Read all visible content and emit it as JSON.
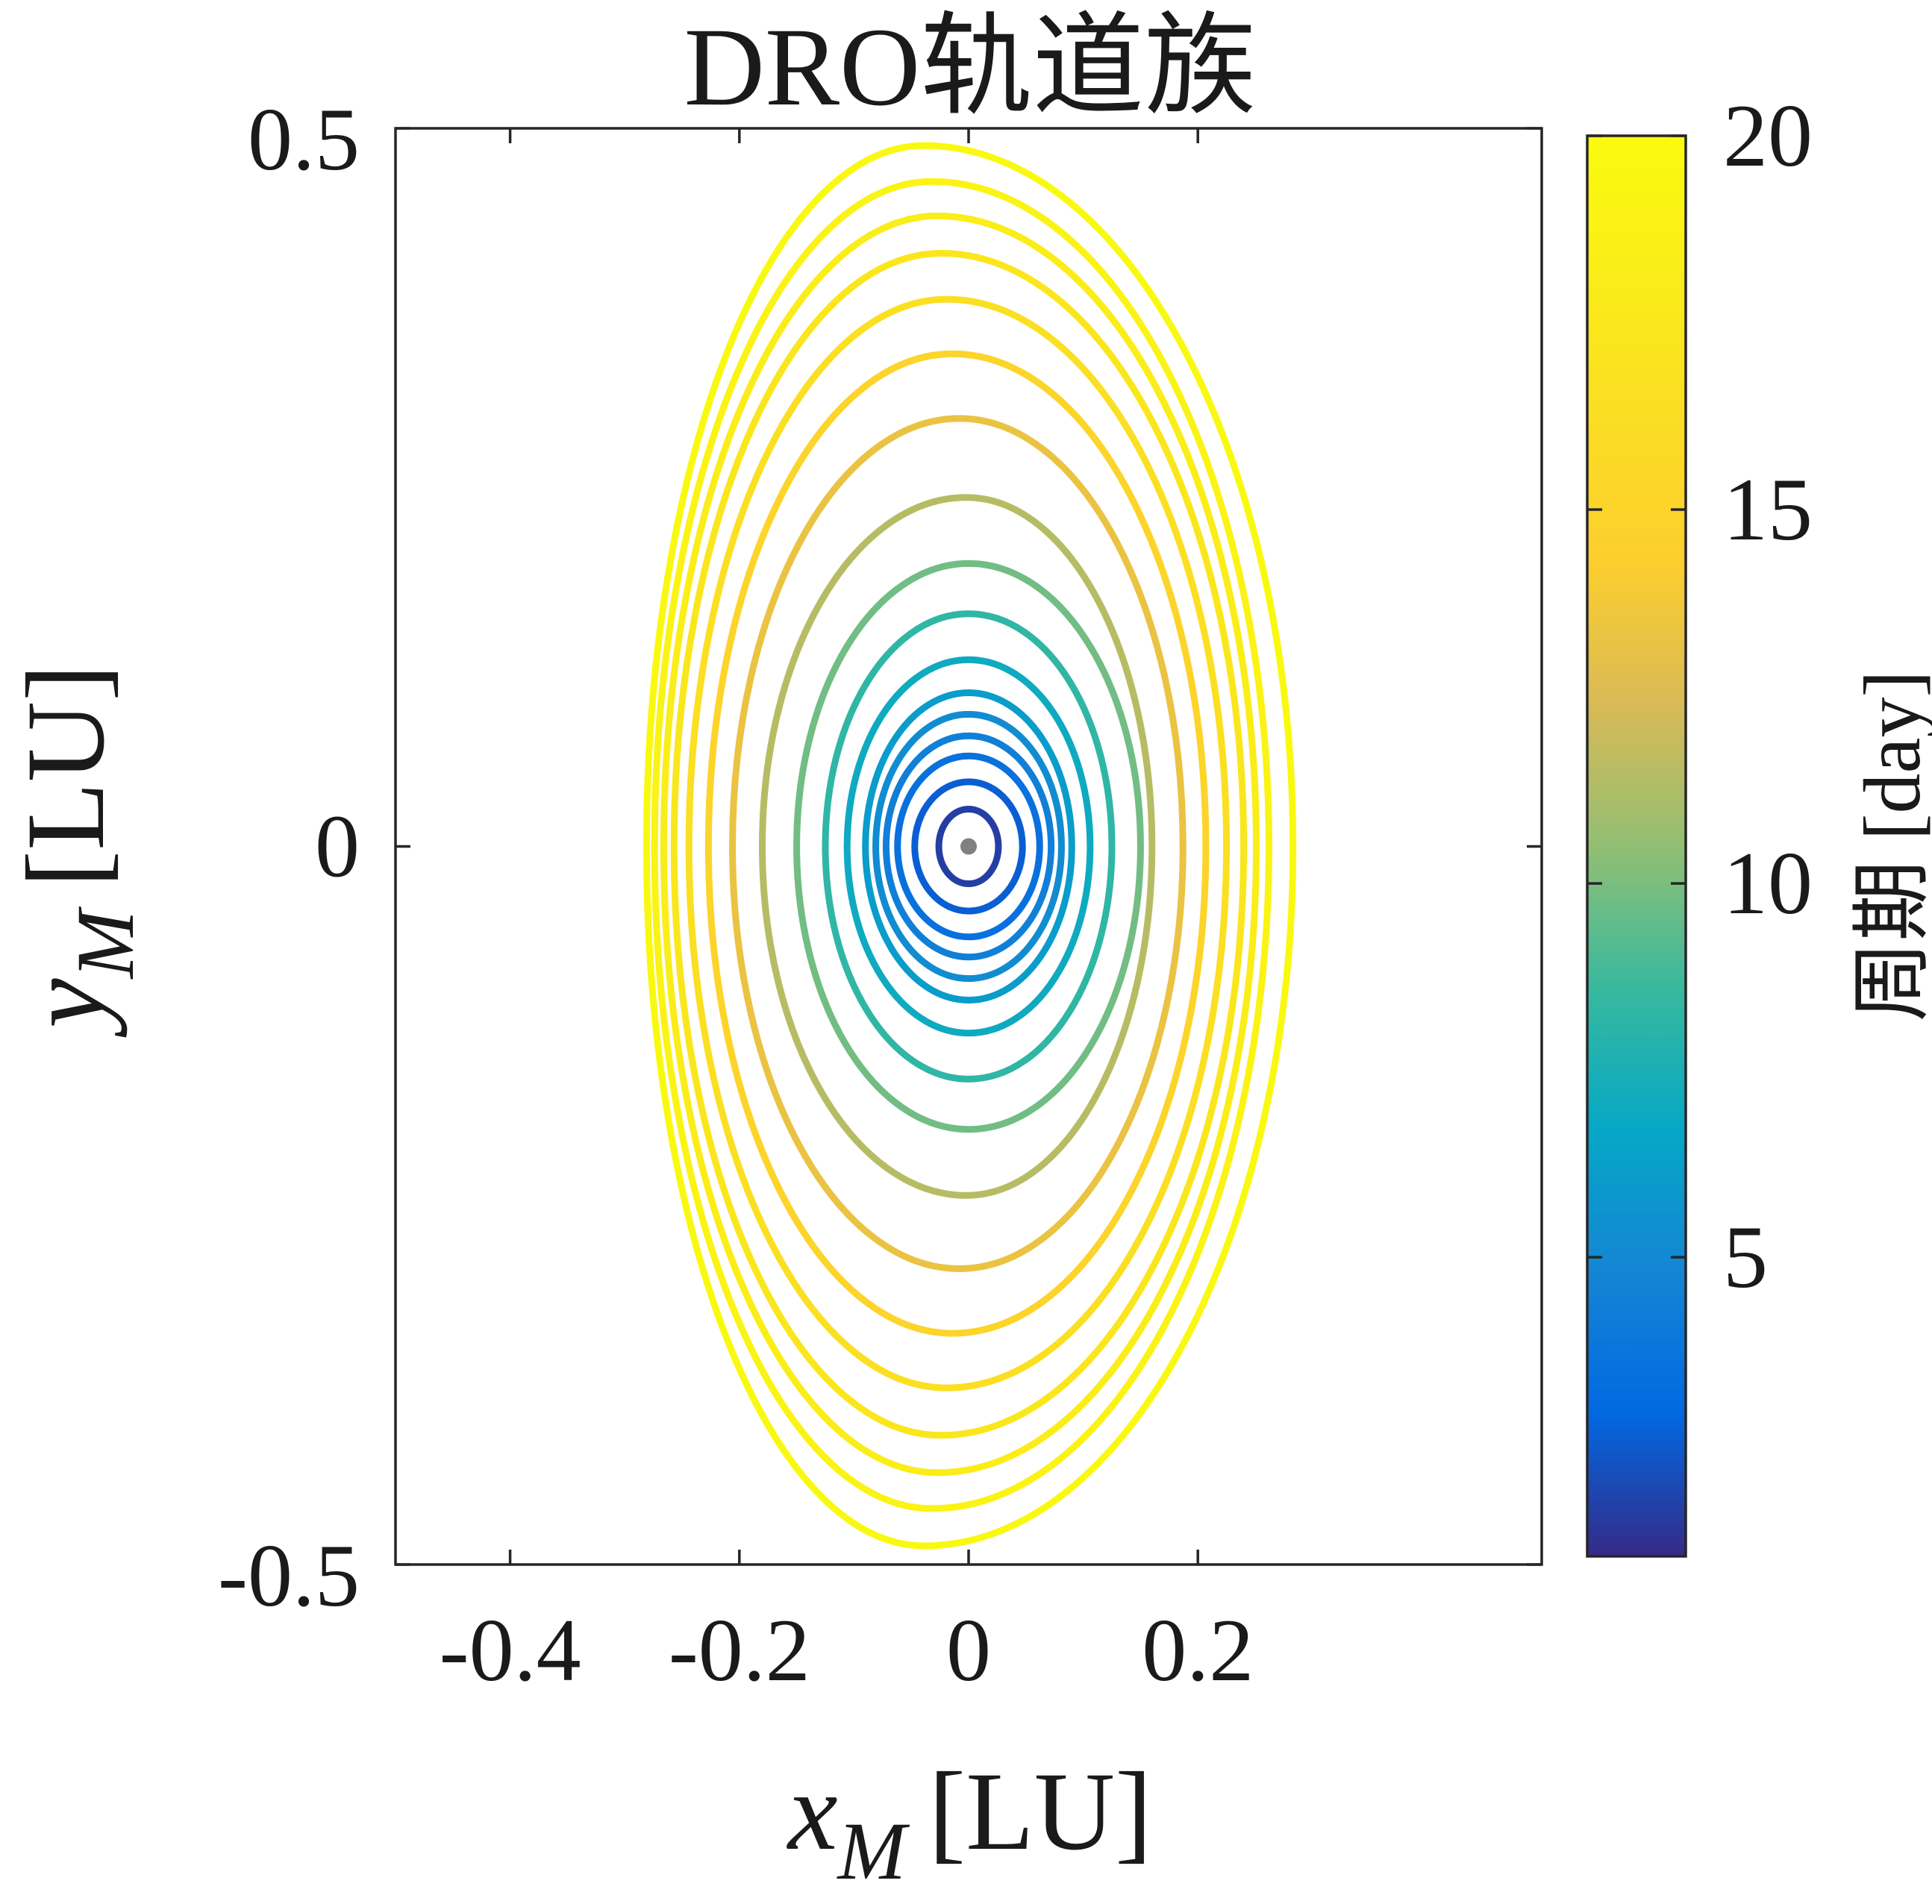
{
  "chart_data": {
    "type": "line",
    "title": "DRO轨道族",
    "xlabel": {
      "symbol": "x",
      "subscript": "M",
      "unit": "[LU]"
    },
    "ylabel": {
      "symbol": "y",
      "subscript": "M",
      "unit": "[LU]"
    },
    "xlim": [
      -0.5,
      0.5
    ],
    "ylim": [
      -0.5,
      0.5
    ],
    "x_ticks": [
      {
        "value": -0.4,
        "label": "-0.4"
      },
      {
        "value": -0.2,
        "label": "-0.2"
      },
      {
        "value": 0,
        "label": "0"
      },
      {
        "value": 0.2,
        "label": "0.2"
      }
    ],
    "y_ticks": [
      {
        "value": 0.5,
        "label": "0.5"
      },
      {
        "value": 0,
        "label": "0"
      },
      {
        "value": -0.5,
        "label": "-0.5"
      }
    ],
    "grid": false,
    "center_marker": {
      "x": 0,
      "y": 0,
      "color": "#808080"
    },
    "colorbar": {
      "label": "周期 [day]",
      "range": [
        1,
        20
      ],
      "ticks": [
        {
          "value": 5,
          "label": "5"
        },
        {
          "value": 10,
          "label": "10"
        },
        {
          "value": 15,
          "label": "15"
        },
        {
          "value": 20,
          "label": "20"
        }
      ],
      "colormap": "parula"
    },
    "series": [
      {
        "period": 1.6,
        "xmin": -0.026,
        "xmax": 0.026,
        "ymin": -0.026,
        "ymax": 0.026,
        "xtop": 0.0,
        "xbot": 0.0
      },
      {
        "period": 2.6,
        "xmin": -0.047,
        "xmax": 0.047,
        "ymin": -0.045,
        "ymax": 0.045,
        "xtop": 0.0,
        "xbot": 0.0
      },
      {
        "period": 3.5,
        "xmin": -0.062,
        "xmax": 0.062,
        "ymin": -0.063,
        "ymax": 0.063,
        "xtop": 0.0,
        "xbot": 0.0
      },
      {
        "period": 4.4,
        "xmin": -0.072,
        "xmax": 0.072,
        "ymin": -0.077,
        "ymax": 0.077,
        "xtop": 0.0,
        "xbot": 0.0
      },
      {
        "period": 5.2,
        "xmin": -0.081,
        "xmax": 0.081,
        "ymin": -0.092,
        "ymax": 0.092,
        "xtop": 0.0,
        "xbot": 0.0
      },
      {
        "period": 6.1,
        "xmin": -0.09,
        "xmax": 0.09,
        "ymin": -0.107,
        "ymax": 0.107,
        "xtop": 0.0,
        "xbot": 0.0
      },
      {
        "period": 7.0,
        "xmin": -0.106,
        "xmax": 0.106,
        "ymin": -0.13,
        "ymax": 0.13,
        "xtop": 0.0,
        "xbot": 0.0
      },
      {
        "period": 8.3,
        "xmin": -0.125,
        "xmax": 0.125,
        "ymin": -0.162,
        "ymax": 0.162,
        "xtop": 0.0,
        "xbot": 0.0
      },
      {
        "period": 9.8,
        "xmin": -0.15,
        "xmax": 0.15,
        "ymin": -0.197,
        "ymax": 0.197,
        "xtop": 0.0,
        "xbot": 0.0
      },
      {
        "period": 11.5,
        "xmin": -0.18,
        "xmax": 0.16,
        "ymin": -0.243,
        "ymax": 0.243,
        "xtop": -0.002,
        "xbot": -0.002
      },
      {
        "period": 13.3,
        "xmin": -0.206,
        "xmax": 0.187,
        "ymin": -0.294,
        "ymax": 0.298,
        "xtop": -0.008,
        "xbot": -0.008
      },
      {
        "period": 15.0,
        "xmin": -0.227,
        "xmax": 0.207,
        "ymin": -0.339,
        "ymax": 0.343,
        "xtop": -0.014,
        "xbot": -0.014
      },
      {
        "period": 16.5,
        "xmin": -0.244,
        "xmax": 0.225,
        "ymin": -0.377,
        "ymax": 0.381,
        "xtop": -0.019,
        "xbot": -0.019
      },
      {
        "period": 17.3,
        "xmin": -0.257,
        "xmax": 0.24,
        "ymin": -0.41,
        "ymax": 0.413,
        "xtop": -0.024,
        "xbot": -0.024
      },
      {
        "period": 18.2,
        "xmin": -0.266,
        "xmax": 0.251,
        "ymin": -0.436,
        "ymax": 0.439,
        "xtop": -0.027,
        "xbot": -0.027
      },
      {
        "period": 19.0,
        "xmin": -0.274,
        "xmax": 0.262,
        "ymin": -0.461,
        "ymax": 0.463,
        "xtop": -0.032,
        "xbot": -0.032
      },
      {
        "period": 19.7,
        "xmin": -0.281,
        "xmax": 0.283,
        "ymin": -0.487,
        "ymax": 0.488,
        "xtop": -0.039,
        "xbot": -0.039
      }
    ]
  }
}
